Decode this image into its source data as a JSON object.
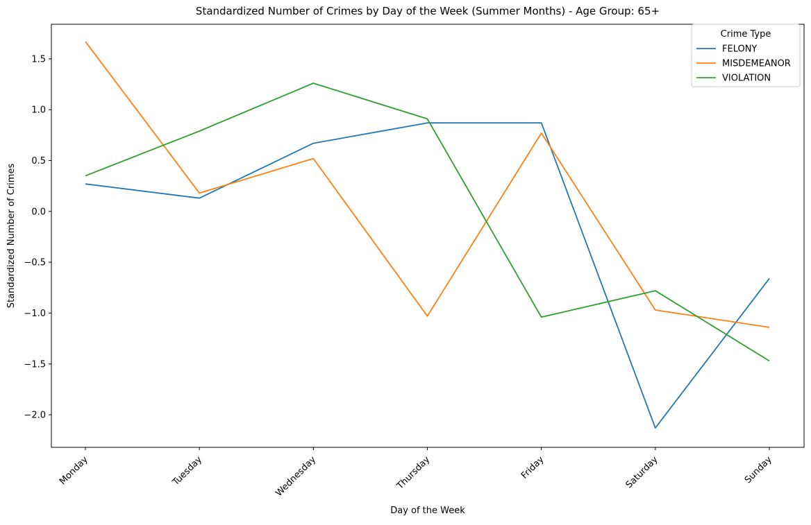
{
  "chart_data": {
    "type": "line",
    "title": "Standardized Number of Crimes by Day of the Week (Summer Months) - Age Group: 65+",
    "xlabel": "Day of the Week",
    "ylabel": "Standardized Number of Crimes",
    "categories": [
      "Monday",
      "Tuesday",
      "Wednesday",
      "Thursday",
      "Friday",
      "Saturday",
      "Sunday"
    ],
    "ylim": [
      -2.32,
      1.84
    ],
    "yticks": [
      -2.0,
      -1.5,
      -1.0,
      -0.5,
      0.0,
      0.5,
      1.0,
      1.5
    ],
    "ytick_labels": [
      "−2.0",
      "−1.5",
      "−1.0",
      "−0.5",
      "0.0",
      "0.5",
      "1.0",
      "1.5"
    ],
    "grid": false,
    "legend": {
      "title": "Crime Type",
      "placement": "top-right"
    },
    "series": [
      {
        "name": "FELONY",
        "color": "#1f77b4",
        "values": [
          0.27,
          0.13,
          0.67,
          0.87,
          0.87,
          -2.13,
          -0.66
        ]
      },
      {
        "name": "MISDEMEANOR",
        "color": "#ff7f0e",
        "values": [
          1.67,
          0.18,
          0.52,
          -1.03,
          0.77,
          -0.97,
          -1.14
        ]
      },
      {
        "name": "VIOLATION",
        "color": "#2ca02c",
        "values": [
          0.35,
          0.79,
          1.26,
          0.91,
          -1.04,
          -0.78,
          -1.47
        ]
      }
    ]
  }
}
